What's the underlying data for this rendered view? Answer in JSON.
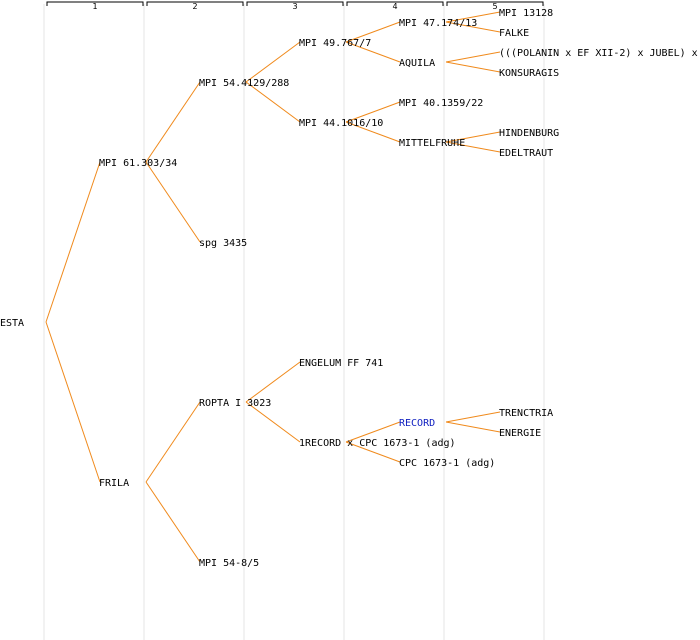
{
  "colors": {
    "edge": "#f08a1c",
    "highlight": "#1020c0",
    "text": "#000000",
    "column_line": "#e4e4e4"
  },
  "generations": [
    "1",
    "2",
    "3",
    "4",
    "5"
  ],
  "nodes": [
    {
      "id": "esta",
      "label": "ESTA",
      "gen": 0
    },
    {
      "id": "mpi61",
      "label": "MPI 61.303/34",
      "gen": 1,
      "parent": "esta"
    },
    {
      "id": "frila",
      "label": "FRILA",
      "gen": 1,
      "parent": "esta"
    },
    {
      "id": "mpi54",
      "label": "MPI 54.4129/288",
      "gen": 2,
      "parent": "mpi61"
    },
    {
      "id": "spg3435",
      "label": "spg 3435",
      "gen": 2,
      "parent": "mpi61"
    },
    {
      "id": "ropta",
      "label": "ROPTA I 3023",
      "gen": 2,
      "parent": "frila"
    },
    {
      "id": "mpi548",
      "label": "MPI 54-8/5",
      "gen": 2,
      "parent": "frila"
    },
    {
      "id": "mpi49",
      "label": "MPI 49.767/7",
      "gen": 3,
      "parent": "mpi54"
    },
    {
      "id": "mpi44",
      "label": "MPI 44.1016/10",
      "gen": 3,
      "parent": "mpi54"
    },
    {
      "id": "engelum",
      "label": "ENGELUM FF 741",
      "gen": 3,
      "parent": "ropta"
    },
    {
      "id": "record1",
      "label": "1RECORD x CPC 1673-1 (adg)",
      "gen": 3,
      "parent": "ropta"
    },
    {
      "id": "mpi47",
      "label": "MPI 47.174/13",
      "gen": 4,
      "parent": "mpi49"
    },
    {
      "id": "aquila",
      "label": "AQUILA",
      "gen": 4,
      "parent": "mpi49"
    },
    {
      "id": "mpi40",
      "label": "MPI 40.1359/22",
      "gen": 4,
      "parent": "mpi44"
    },
    {
      "id": "mittel",
      "label": "MITTELFRUHE",
      "gen": 4,
      "parent": "mpi44"
    },
    {
      "id": "record",
      "label": "RECORD",
      "gen": 4,
      "parent": "record1",
      "highlight": true
    },
    {
      "id": "cpc",
      "label": "CPC 1673-1 (adg)",
      "gen": 4,
      "parent": "record1"
    },
    {
      "id": "mpi13128",
      "label": "MPI 13128",
      "gen": 5,
      "parent": "mpi47"
    },
    {
      "id": "falke",
      "label": "FALKE",
      "gen": 5,
      "parent": "mpi47"
    },
    {
      "id": "polanin",
      "label": "(((POLANIN x EF XII-2) x JUBEL) x",
      "gen": 5,
      "parent": "aquila"
    },
    {
      "id": "konsuragis",
      "label": "KONSURAGIS",
      "gen": 5,
      "parent": "aquila"
    },
    {
      "id": "hindenburg",
      "label": "HINDENBURG",
      "gen": 5,
      "parent": "mittel"
    },
    {
      "id": "edeltraut",
      "label": "EDELTRAUT",
      "gen": 5,
      "parent": "mittel"
    },
    {
      "id": "trenctria",
      "label": "TRENCTRIA",
      "gen": 5,
      "parent": "record"
    },
    {
      "id": "energie",
      "label": "ENERGIE",
      "gen": 5,
      "parent": "record"
    }
  ]
}
